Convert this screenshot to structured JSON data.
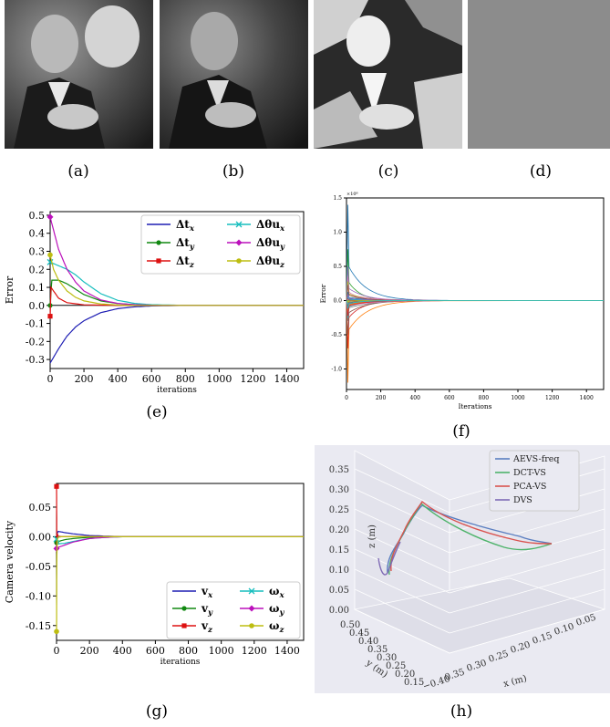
{
  "captions": [
    "(a)",
    "(b)",
    "(c)",
    "(d)",
    "(e)",
    "(f)",
    "(g)",
    "(h)"
  ],
  "chart_data": [
    {
      "panel": "e",
      "type": "line",
      "xlabel": "iterations",
      "ylabel": "Error",
      "xlim": [
        0,
        1500
      ],
      "ylim": [
        -0.35,
        0.52
      ],
      "xticks": [
        "0",
        "200",
        "400",
        "600",
        "800",
        "1000",
        "1200",
        "1400"
      ],
      "yticks": [
        "0.5",
        "0.4",
        "0.3",
        "0.2",
        "0.1",
        "0.0",
        "-0.1",
        "-0.2",
        "-0.3"
      ],
      "legend": [
        "Δt_x",
        "Δt_y",
        "Δt_z",
        "Δθu_x",
        "Δθu_y",
        "Δθu_z"
      ],
      "legend_position": "top-right",
      "series": [
        {
          "name": "Δt_x",
          "color": "#1f1fb4",
          "x": [
            0,
            50,
            100,
            150,
            200,
            300,
            400,
            500,
            600,
            800,
            1500
          ],
          "y": [
            -0.32,
            -0.24,
            -0.17,
            -0.12,
            -0.085,
            -0.04,
            -0.018,
            -0.008,
            -0.003,
            0,
            0
          ]
        },
        {
          "name": "Δt_y",
          "color": "#118811",
          "x": [
            0,
            10,
            50,
            100,
            150,
            200,
            300,
            400,
            500,
            600,
            800,
            1500
          ],
          "y": [
            0.0,
            0.14,
            0.14,
            0.12,
            0.09,
            0.06,
            0.025,
            0.01,
            0.004,
            0.001,
            0,
            0
          ]
        },
        {
          "name": "Δt_z",
          "color": "#dd1111",
          "x": [
            0,
            5,
            20,
            50,
            100,
            200,
            400,
            1500
          ],
          "y": [
            -0.06,
            0.1,
            0.08,
            0.04,
            0.015,
            0.003,
            0,
            0
          ]
        },
        {
          "name": "Δθu_x",
          "color": "#17bebe",
          "x": [
            0,
            50,
            100,
            150,
            200,
            300,
            400,
            500,
            600,
            800,
            1500
          ],
          "y": [
            0.24,
            0.22,
            0.2,
            0.17,
            0.13,
            0.065,
            0.028,
            0.011,
            0.004,
            0,
            0
          ]
        },
        {
          "name": "Δθu_y",
          "color": "#bb11bb",
          "x": [
            0,
            25,
            50,
            100,
            150,
            200,
            300,
            400,
            500,
            600,
            800,
            1500
          ],
          "y": [
            0.49,
            0.4,
            0.31,
            0.2,
            0.13,
            0.08,
            0.03,
            0.011,
            0.004,
            0.001,
            0,
            0
          ]
        },
        {
          "name": "Δθu_z",
          "color": "#bdbd11",
          "x": [
            0,
            20,
            50,
            100,
            150,
            200,
            300,
            400,
            500,
            800,
            1500
          ],
          "y": [
            0.28,
            0.2,
            0.14,
            0.08,
            0.045,
            0.025,
            0.008,
            0.002,
            0,
            0,
            0
          ]
        }
      ]
    },
    {
      "panel": "f",
      "type": "line",
      "xlabel": "Iterations",
      "ylabel": "Error",
      "exponent": "×10⁸",
      "xlim": [
        0,
        1500
      ],
      "ylim": [
        -1.3,
        1.5
      ],
      "xticks": [
        "0",
        "200",
        "400",
        "600",
        "800",
        "1000",
        "1200",
        "1400"
      ],
      "yticks": [
        "1.5",
        "1.0",
        "0.5",
        "0.0",
        "-0.5",
        "-1.0"
      ],
      "note": "many series (one per frequency coefficient) converging to 0 by ~500 iterations"
    },
    {
      "panel": "g",
      "type": "line",
      "xlabel": "iterations",
      "ylabel": "Camera velocity",
      "xlim": [
        0,
        1500
      ],
      "ylim": [
        -0.175,
        0.09
      ],
      "xticks": [
        "0",
        "200",
        "400",
        "600",
        "800",
        "1000",
        "1200",
        "1400"
      ],
      "yticks": [
        "0.05",
        "0.00",
        "-0.05",
        "-0.10",
        "-0.15"
      ],
      "legend": [
        "v_x",
        "v_y",
        "v_z",
        "ω_x",
        "ω_y",
        "ω_z"
      ],
      "legend_position": "bottom-right",
      "series": [
        {
          "name": "v_x",
          "color": "#1f1fb4",
          "x": [
            0,
            10,
            50,
            100,
            200,
            300,
            400,
            1500
          ],
          "y": [
            0.003,
            0.009,
            0.007,
            0.005,
            0.002,
            0.001,
            0,
            0
          ]
        },
        {
          "name": "v_y",
          "color": "#118811",
          "x": [
            0,
            10,
            50,
            100,
            200,
            300,
            400,
            1500
          ],
          "y": [
            -0.01,
            -0.008,
            -0.005,
            -0.003,
            -0.001,
            0,
            0,
            0
          ]
        },
        {
          "name": "v_z",
          "color": "#dd1111",
          "x": [
            0,
            2,
            5,
            10,
            30,
            100,
            1500
          ],
          "y": [
            0.085,
            -0.02,
            0.005,
            0.001,
            0,
            0,
            0
          ]
        },
        {
          "name": "ω_x",
          "color": "#17bebe",
          "x": [
            0,
            10,
            50,
            100,
            200,
            300,
            400,
            1500
          ],
          "y": [
            -0.004,
            -0.012,
            -0.011,
            -0.008,
            -0.003,
            -0.001,
            0,
            0
          ]
        },
        {
          "name": "ω_y",
          "color": "#bb11bb",
          "x": [
            0,
            10,
            50,
            100,
            200,
            300,
            400,
            1500
          ],
          "y": [
            -0.02,
            -0.018,
            -0.014,
            -0.009,
            -0.003,
            -0.001,
            0,
            0
          ]
        },
        {
          "name": "ω_z",
          "color": "#bdbd11",
          "x": [
            0,
            2,
            5,
            10,
            30,
            100,
            1500
          ],
          "y": [
            -0.16,
            -0.03,
            -0.005,
            -0.001,
            0,
            0,
            0
          ]
        }
      ]
    },
    {
      "panel": "h",
      "type": "line3d",
      "xlabel": "x (m)",
      "ylabel": "y (m)",
      "zlabel": "z (m)",
      "xticks": [
        "−0.40",
        "0.35",
        "0.30",
        "0.25",
        "0.20",
        "0.15",
        "0.10",
        "0.05"
      ],
      "yticks": [
        "0.50",
        "0.45",
        "0.40",
        "0.35",
        "0.30",
        "0.25",
        "0.20",
        "0.15"
      ],
      "zticks": [
        "0.35",
        "0.30",
        "0.25",
        "0.20",
        "0.15",
        "0.10",
        "0.05",
        "0.00"
      ],
      "legend": [
        "AEVS-freq",
        "DCT-VS",
        "PCA-VS",
        "DVS"
      ],
      "legend_position": "top-right",
      "colors": [
        "#5a7ec0",
        "#4db36a",
        "#d9534f",
        "#7f6bb5"
      ]
    }
  ]
}
